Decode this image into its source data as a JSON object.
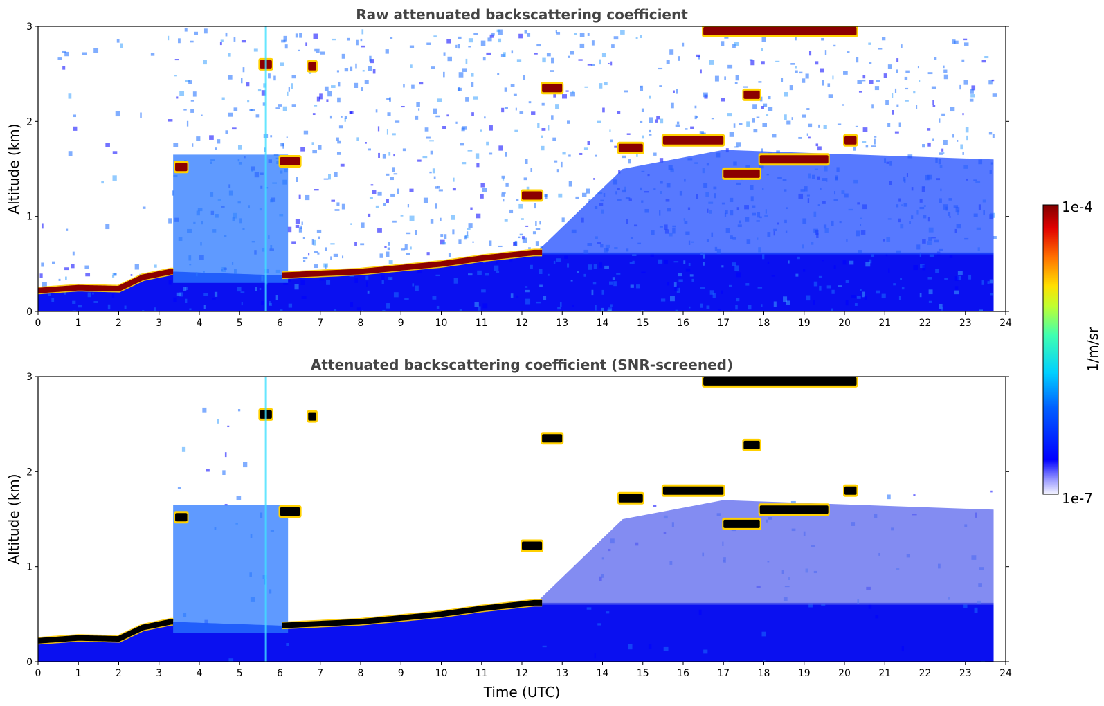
{
  "chart_data": [
    {
      "type": "heatmap",
      "title": "Raw attenuated backscattering coefficient",
      "xlabel": "",
      "ylabel": "Altitude (km)",
      "xlim": [
        0,
        24
      ],
      "ylim": [
        0,
        3
      ],
      "xticks": [
        "0",
        "1",
        "2",
        "3",
        "4",
        "5",
        "6",
        "7",
        "8",
        "9",
        "10",
        "11",
        "12",
        "13",
        "14",
        "15",
        "16",
        "17",
        "18",
        "19",
        "20",
        "21",
        "22",
        "23",
        "24"
      ],
      "yticks": [
        "0",
        "1",
        "2",
        "3"
      ],
      "data_end_time": 23.7,
      "boundary_layer_top_km": [
        {
          "x": 0,
          "y": 0.22
        },
        {
          "x": 1,
          "y": 0.25
        },
        {
          "x": 2,
          "y": 0.24
        },
        {
          "x": 2.6,
          "y": 0.36
        },
        {
          "x": 3.3,
          "y": 0.42
        },
        {
          "x": 6.0,
          "y": 0.38
        },
        {
          "x": 8.0,
          "y": 0.42
        },
        {
          "x": 10.0,
          "y": 0.5
        },
        {
          "x": 11.0,
          "y": 0.56
        },
        {
          "x": 12.3,
          "y": 0.62
        }
      ],
      "cloud_layers_km": [
        {
          "t0": 3.4,
          "t1": 3.7,
          "alt": 1.52
        },
        {
          "t0": 6.0,
          "t1": 6.5,
          "alt": 1.58
        },
        {
          "t0": 12.0,
          "t1": 12.5,
          "alt": 1.22
        },
        {
          "t0": 14.4,
          "t1": 15.0,
          "alt": 1.72
        },
        {
          "t0": 15.5,
          "t1": 17.0,
          "alt": 1.8
        },
        {
          "t0": 17.0,
          "t1": 17.9,
          "alt": 1.45
        },
        {
          "t0": 17.9,
          "t1": 19.6,
          "alt": 1.6
        },
        {
          "t0": 20.0,
          "t1": 20.3,
          "alt": 1.8
        },
        {
          "t0": 17.5,
          "t1": 17.9,
          "alt": 2.28
        },
        {
          "t0": 12.5,
          "t1": 13.0,
          "alt": 2.35
        },
        {
          "t0": 5.5,
          "t1": 5.8,
          "alt": 2.6
        },
        {
          "t0": 6.7,
          "t1": 6.9,
          "alt": 2.58
        },
        {
          "t0": 16.5,
          "t1": 20.3,
          "alt": 2.95
        }
      ],
      "screened": false
    },
    {
      "type": "heatmap",
      "title": "Attenuated backscattering coefficient (SNR-screened)",
      "xlabel": "Time (UTC)",
      "ylabel": "Altitude (km)",
      "xlim": [
        0,
        24
      ],
      "ylim": [
        0,
        3
      ],
      "xticks": [
        "0",
        "1",
        "2",
        "3",
        "4",
        "5",
        "6",
        "7",
        "8",
        "9",
        "10",
        "11",
        "12",
        "13",
        "14",
        "15",
        "16",
        "17",
        "18",
        "19",
        "20",
        "21",
        "22",
        "23",
        "24"
      ],
      "yticks": [
        "0",
        "1",
        "2",
        "3"
      ],
      "data_end_time": 23.7,
      "screened": true
    }
  ],
  "colorbar": {
    "label": "1/m/sr",
    "max_label": "1e-4",
    "min_label": "1e-7",
    "scale": "log",
    "colormap": "jet",
    "range": [
      1e-07,
      0.0001
    ]
  },
  "colors": {
    "title": "#444444",
    "background_low": "#0a10f0",
    "noise": "#1a6cff",
    "cloud_core": "#8b0000",
    "cloud_core_screened": "#000000"
  }
}
